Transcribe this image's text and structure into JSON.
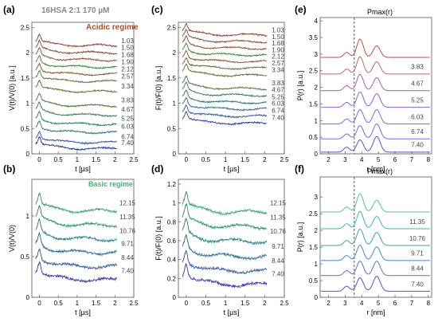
{
  "figure": {
    "sample_label": "16HSA 2:1 170 µM",
    "acidic_label": "Acidic regime",
    "basic_label": "Basic regime",
    "colors": {
      "acidic_label": "#a0522d",
      "basic_label": "#3cb371",
      "fit": "#222222",
      "dashed": "#333333"
    }
  },
  "chart_data": [
    {
      "panel": "a",
      "type": "line",
      "xlabel": "t [µs]",
      "ylabel": "V(t)/V(0) [a.u.]",
      "xlim": [
        -0.2,
        2.5
      ],
      "ylim": [
        0,
        2.6
      ],
      "xticks": [
        "0",
        "0.5",
        "1",
        "1.5",
        "2",
        "2.5"
      ],
      "yticks": [
        "0",
        "0.5",
        "1",
        "1.5",
        "2",
        "2.5"
      ],
      "series": [
        {
          "name": "1.03",
          "offset": 2.24,
          "color": "#b5533b"
        },
        {
          "name": "1.50",
          "offset": 2.1,
          "color": "#b4603d"
        },
        {
          "name": "1.68",
          "offset": 1.96,
          "color": "#b06b3f"
        },
        {
          "name": "1.90",
          "offset": 1.82,
          "color": "#4caf50"
        },
        {
          "name": "2.12",
          "offset": 1.68,
          "color": "#a87a42"
        },
        {
          "name": "2.57",
          "offset": 1.54,
          "color": "#9c8444"
        },
        {
          "name": "3.34",
          "offset": 1.34,
          "color": "#8c8a48"
        },
        {
          "name": "3.83",
          "offset": 1.06,
          "color": "#6f9a55"
        },
        {
          "name": "4.67",
          "offset": 0.88,
          "color": "#4fa26a"
        },
        {
          "name": "5.25",
          "offset": 0.7,
          "color": "#3aa08a"
        },
        {
          "name": "6.03",
          "offset": 0.54,
          "color": "#3a8fa8"
        },
        {
          "name": "6.74",
          "offset": 0.34,
          "color": "#3b6fc0"
        },
        {
          "name": "7.40",
          "offset": 0.22,
          "color": "#3a3fc0"
        }
      ]
    },
    {
      "panel": "c",
      "type": "line",
      "xlabel": "t [µs]",
      "ylabel": "F(t)/F(0) [a.u.]",
      "xlim": [
        -0.2,
        2.5
      ],
      "ylim": [
        0,
        2.6
      ],
      "xticks": [
        "0",
        "0.5",
        "1",
        "1.5",
        "2",
        "2.5"
      ],
      "yticks": [
        "0",
        "0.5",
        "1",
        "1.5",
        "2",
        "2.5"
      ],
      "series": [
        {
          "name": "1.03",
          "offset": 2.45,
          "color": "#b5533b"
        },
        {
          "name": "1.50",
          "offset": 2.32,
          "color": "#b4603d"
        },
        {
          "name": "1.68",
          "offset": 2.19,
          "color": "#b06b3f"
        },
        {
          "name": "1.90",
          "offset": 2.06,
          "color": "#4caf50"
        },
        {
          "name": "2.12",
          "offset": 1.93,
          "color": "#a87a42"
        },
        {
          "name": "2.57",
          "offset": 1.8,
          "color": "#9c8444"
        },
        {
          "name": "3.34",
          "offset": 1.66,
          "color": "#8c8a48"
        },
        {
          "name": "3.83",
          "offset": 1.4,
          "color": "#6f9a55"
        },
        {
          "name": "4.67",
          "offset": 1.27,
          "color": "#4fa26a"
        },
        {
          "name": "5.25",
          "offset": 1.13,
          "color": "#3aa08a"
        },
        {
          "name": "6.03",
          "offset": 1.0,
          "color": "#3a8fa8"
        },
        {
          "name": "6.74",
          "offset": 0.86,
          "color": "#3b6fc0"
        },
        {
          "name": "7.40",
          "offset": 0.72,
          "color": "#3a3fc0"
        }
      ]
    },
    {
      "panel": "e",
      "type": "line",
      "title": "Pmax(r)",
      "xlabel": "r [nm]",
      "ylabel": "P(r) [a.u.]",
      "xlim": [
        1.5,
        8.2
      ],
      "ylim": [
        0,
        4.1
      ],
      "xticks": [
        "2",
        "3",
        "4",
        "5",
        "6",
        "7",
        "8"
      ],
      "yticks": [
        "0",
        "0.5",
        "1",
        "1.5",
        "2",
        "2.5",
        "3",
        "3.5",
        "4"
      ],
      "dashed_x": 3.55,
      "series": [
        {
          "name": "",
          "offset": 2.9,
          "color": "#b5533b"
        },
        {
          "name": "3.83",
          "offset": 2.4,
          "color": "#b06b6b"
        },
        {
          "name": "4.67",
          "offset": 1.9,
          "color": "#a75fa0"
        },
        {
          "name": "5.25",
          "offset": 1.4,
          "color": "#8e63c8"
        },
        {
          "name": "6.03",
          "offset": 0.9,
          "color": "#7b6ad0"
        },
        {
          "name": "6.74",
          "offset": 0.45,
          "color": "#6a70d6"
        },
        {
          "name": "7.40",
          "offset": 0.05,
          "color": "#4a55c8"
        }
      ]
    },
    {
      "panel": "b",
      "type": "line",
      "xlabel": "t [µs]",
      "ylabel": "V(t)/V(0)",
      "xlim": [
        -0.2,
        2.5
      ],
      "ylim": [
        0,
        1.45
      ],
      "xticks": [
        "0",
        "0.5",
        "1",
        "1.5",
        "2",
        "2.5"
      ],
      "yticks": [
        "0",
        "0.5",
        "1"
      ],
      "series": [
        {
          "name": "12.15",
          "offset": 1.16,
          "color": "#4cc98a"
        },
        {
          "name": "11.35",
          "offset": 0.99,
          "color": "#3fb596"
        },
        {
          "name": "10.76",
          "offset": 0.82,
          "color": "#3a9fa5"
        },
        {
          "name": "9.71",
          "offset": 0.66,
          "color": "#3a86b5"
        },
        {
          "name": "8.44",
          "offset": 0.49,
          "color": "#3c6cc2"
        },
        {
          "name": "7.40",
          "offset": 0.33,
          "color": "#3a3fc0"
        }
      ]
    },
    {
      "panel": "d",
      "type": "line",
      "xlabel": "t [µs]",
      "ylabel": "F(t)/F(0) [a.u.]",
      "xlim": [
        -0.2,
        2.5
      ],
      "ylim": [
        0,
        1.25
      ],
      "xticks": [
        "0",
        "0.5",
        "1",
        "1.5",
        "2",
        "2.5"
      ],
      "yticks": [
        "0",
        "0.2",
        "0.4",
        "0.6",
        "0.8",
        "1",
        "1.2"
      ],
      "series": [
        {
          "name": "12.15",
          "offset": 1.0,
          "color": "#4cc98a"
        },
        {
          "name": "11.35",
          "offset": 0.85,
          "color": "#3fb596"
        },
        {
          "name": "10.76",
          "offset": 0.7,
          "color": "#3a9fa5"
        },
        {
          "name": "9.71",
          "offset": 0.54,
          "color": "#3a86b5"
        },
        {
          "name": "8.44",
          "offset": 0.39,
          "color": "#3c6cc2"
        },
        {
          "name": "7.40",
          "offset": 0.25,
          "color": "#3a3fc0"
        }
      ]
    },
    {
      "panel": "f",
      "type": "line",
      "title": "Pmax(r)",
      "xlabel": "r [nm]",
      "ylabel": "P(r) [a.u.]",
      "xlim": [
        1.5,
        8.2
      ],
      "ylim": [
        0,
        3.6
      ],
      "xticks": [
        "2",
        "3",
        "4",
        "5",
        "6",
        "7",
        "8"
      ],
      "yticks": [
        "0",
        "0.5",
        "1",
        "1.5",
        "2",
        "2.5",
        "3"
      ],
      "dashed_x": 3.55,
      "series": [
        {
          "name": "",
          "offset": 2.55,
          "color": "#4cc98a"
        },
        {
          "name": "11.35",
          "offset": 2.05,
          "color": "#3fb5a8"
        },
        {
          "name": "10.76",
          "offset": 1.55,
          "color": "#3a9fb8"
        },
        {
          "name": "9.71",
          "offset": 1.1,
          "color": "#4a86c8"
        },
        {
          "name": "8.44",
          "offset": 0.65,
          "color": "#5a6fd0"
        },
        {
          "name": "7.40",
          "offset": 0.18,
          "color": "#4a55c8"
        }
      ]
    }
  ]
}
